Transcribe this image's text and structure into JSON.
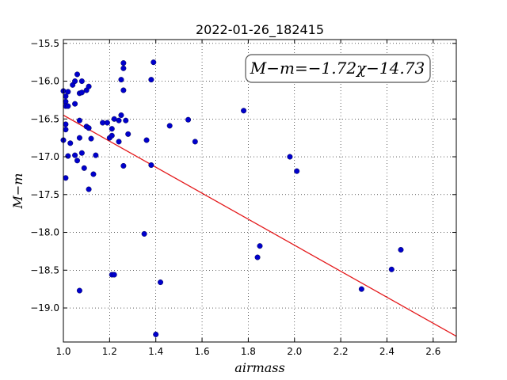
{
  "chart_data": {
    "type": "scatter",
    "title": "2022-01-26_182415",
    "xlabel": "airmass",
    "ylabel": "M−m",
    "xlim": [
      1.0,
      2.7
    ],
    "ylim": [
      -15.45,
      -19.45
    ],
    "y_inverted": true,
    "grid": true,
    "x_ticks": [
      "1.0",
      "1.2",
      "1.4",
      "1.6",
      "1.8",
      "2.0",
      "2.2",
      "2.4",
      "2.6"
    ],
    "y_ticks": [
      "−15.5",
      "−16.0",
      "−16.5",
      "−17.0",
      "−17.5",
      "−18.0",
      "−18.5",
      "−19.0"
    ],
    "annotation": "M−m=−1.72χ−14.73",
    "fit_line": {
      "slope": -1.72,
      "intercept": -14.73,
      "color": "#e41a1c"
    },
    "point_color": "#0000cc",
    "points": [
      [
        1.0,
        -16.78
      ],
      [
        1.0,
        -16.13
      ],
      [
        1.01,
        -16.2
      ],
      [
        1.01,
        -16.27
      ],
      [
        1.01,
        -16.33
      ],
      [
        1.01,
        -16.57
      ],
      [
        1.01,
        -16.64
      ],
      [
        1.01,
        -17.28
      ],
      [
        1.02,
        -16.14
      ],
      [
        1.02,
        -16.33
      ],
      [
        1.02,
        -16.99
      ],
      [
        1.03,
        -16.82
      ],
      [
        1.04,
        -16.05
      ],
      [
        1.05,
        -16.0
      ],
      [
        1.05,
        -16.3
      ],
      [
        1.05,
        -16.98
      ],
      [
        1.06,
        -15.91
      ],
      [
        1.06,
        -17.05
      ],
      [
        1.07,
        -16.16
      ],
      [
        1.07,
        -16.52
      ],
      [
        1.07,
        -16.75
      ],
      [
        1.07,
        -18.77
      ],
      [
        1.08,
        -16.0
      ],
      [
        1.08,
        -16.15
      ],
      [
        1.08,
        -16.95
      ],
      [
        1.09,
        -17.15
      ],
      [
        1.1,
        -16.6
      ],
      [
        1.1,
        -16.12
      ],
      [
        1.11,
        -16.07
      ],
      [
        1.11,
        -16.62
      ],
      [
        1.11,
        -17.43
      ],
      [
        1.12,
        -16.76
      ],
      [
        1.13,
        -17.23
      ],
      [
        1.14,
        -16.98
      ],
      [
        1.17,
        -16.55
      ],
      [
        1.19,
        -16.55
      ],
      [
        1.2,
        -16.75
      ],
      [
        1.21,
        -16.72
      ],
      [
        1.21,
        -16.63
      ],
      [
        1.21,
        -18.56
      ],
      [
        1.22,
        -18.56
      ],
      [
        1.22,
        -16.5
      ],
      [
        1.24,
        -16.8
      ],
      [
        1.24,
        -16.52
      ],
      [
        1.25,
        -16.45
      ],
      [
        1.25,
        -15.98
      ],
      [
        1.26,
        -15.76
      ],
      [
        1.26,
        -15.83
      ],
      [
        1.26,
        -16.12
      ],
      [
        1.26,
        -17.12
      ],
      [
        1.27,
        -16.52
      ],
      [
        1.28,
        -16.7
      ],
      [
        1.35,
        -18.02
      ],
      [
        1.36,
        -16.78
      ],
      [
        1.38,
        -17.11
      ],
      [
        1.38,
        -15.98
      ],
      [
        1.39,
        -15.75
      ],
      [
        1.4,
        -19.35
      ],
      [
        1.42,
        -18.66
      ],
      [
        1.46,
        -16.59
      ],
      [
        1.54,
        -16.51
      ],
      [
        1.57,
        -16.8
      ],
      [
        1.78,
        -16.39
      ],
      [
        1.84,
        -18.33
      ],
      [
        1.85,
        -18.18
      ],
      [
        1.98,
        -17.0
      ],
      [
        2.01,
        -17.19
      ],
      [
        2.29,
        -18.75
      ],
      [
        2.42,
        -18.49
      ],
      [
        2.46,
        -18.23
      ]
    ]
  }
}
